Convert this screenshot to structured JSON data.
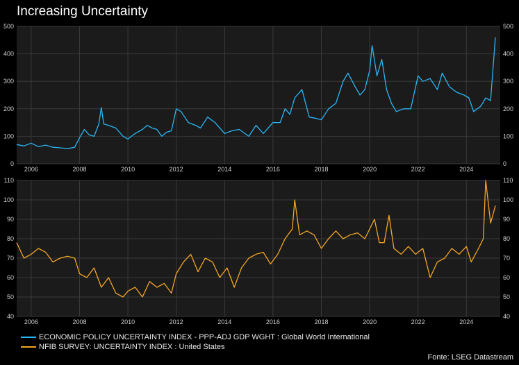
{
  "title": "Increasing Uncertainty",
  "source": "Fonte: LSEG Datastream",
  "legend": [
    {
      "label": "ECONOMIC POLICY UNCERTAINTY INDEX - PPP-ADJ GDP WGHT : Global World International",
      "color": "#29b6f6"
    },
    {
      "label": "NFIB SURVEY: UNCERTAINTY INDEX : United States",
      "color": "#f5a623"
    }
  ],
  "chart_data": [
    {
      "type": "line",
      "color": "#29b6f6",
      "x_ticks": [
        "2006",
        "2008",
        "2010",
        "2012",
        "2014",
        "2016",
        "2018",
        "2020",
        "2022",
        "2024"
      ],
      "y_ticks": [
        "0",
        "100",
        "200",
        "300",
        "400",
        "500"
      ],
      "ylim": [
        0,
        500
      ],
      "xlim": [
        2005.4,
        2025.4
      ],
      "grid": true,
      "series": [
        {
          "name": "ECONOMIC POLICY UNCERTAINTY INDEX - PPP-ADJ GDP WGHT : Global World International",
          "x": [
            2005.4,
            2005.7,
            2006.0,
            2006.3,
            2006.6,
            2006.9,
            2007.2,
            2007.5,
            2007.8,
            2008.0,
            2008.2,
            2008.4,
            2008.6,
            2008.8,
            2008.9,
            2009.0,
            2009.2,
            2009.5,
            2009.8,
            2010.0,
            2010.3,
            2010.6,
            2010.8,
            2011.0,
            2011.2,
            2011.4,
            2011.6,
            2011.8,
            2012.0,
            2012.2,
            2012.5,
            2012.8,
            2013.0,
            2013.3,
            2013.6,
            2014.0,
            2014.3,
            2014.6,
            2015.0,
            2015.3,
            2015.6,
            2016.0,
            2016.3,
            2016.5,
            2016.7,
            2016.9,
            2017.2,
            2017.5,
            2017.8,
            2018.0,
            2018.3,
            2018.6,
            2018.9,
            2019.1,
            2019.4,
            2019.6,
            2019.8,
            2020.0,
            2020.1,
            2020.3,
            2020.5,
            2020.7,
            2020.9,
            2021.1,
            2021.4,
            2021.7,
            2022.0,
            2022.2,
            2022.5,
            2022.8,
            2023.0,
            2023.3,
            2023.6,
            2023.9,
            2024.1,
            2024.3,
            2024.6,
            2024.8,
            2025.0,
            2025.2
          ],
          "y": [
            70,
            65,
            75,
            62,
            68,
            60,
            58,
            55,
            60,
            95,
            125,
            105,
            100,
            145,
            205,
            145,
            140,
            130,
            100,
            90,
            110,
            125,
            140,
            130,
            125,
            100,
            115,
            120,
            200,
            190,
            150,
            140,
            130,
            170,
            150,
            110,
            120,
            125,
            100,
            140,
            110,
            150,
            150,
            200,
            180,
            240,
            270,
            170,
            165,
            160,
            200,
            220,
            300,
            330,
            280,
            250,
            270,
            340,
            430,
            320,
            380,
            270,
            220,
            190,
            200,
            200,
            320,
            300,
            310,
            270,
            330,
            280,
            260,
            250,
            240,
            190,
            210,
            240,
            230,
            460
          ]
        }
      ]
    },
    {
      "type": "line",
      "color": "#f5a623",
      "x_ticks": [
        "2006",
        "2008",
        "2010",
        "2012",
        "2014",
        "2016",
        "2018",
        "2020",
        "2022",
        "2024"
      ],
      "y_ticks": [
        "40",
        "50",
        "60",
        "70",
        "80",
        "90",
        "100",
        "110"
      ],
      "ylim": [
        40,
        110
      ],
      "xlim": [
        2005.4,
        2025.4
      ],
      "grid": true,
      "series": [
        {
          "name": "NFIB SURVEY: UNCERTAINTY INDEX : United States",
          "x": [
            2005.4,
            2005.7,
            2006.0,
            2006.3,
            2006.6,
            2006.9,
            2007.2,
            2007.5,
            2007.8,
            2008.0,
            2008.3,
            2008.6,
            2008.9,
            2009.2,
            2009.5,
            2009.8,
            2010.0,
            2010.3,
            2010.6,
            2010.9,
            2011.2,
            2011.5,
            2011.8,
            2012.0,
            2012.3,
            2012.6,
            2012.9,
            2013.2,
            2013.5,
            2013.8,
            2014.1,
            2014.4,
            2014.7,
            2015.0,
            2015.3,
            2015.6,
            2015.9,
            2016.2,
            2016.5,
            2016.8,
            2016.9,
            2017.1,
            2017.4,
            2017.7,
            2018.0,
            2018.3,
            2018.6,
            2018.9,
            2019.2,
            2019.5,
            2019.8,
            2020.0,
            2020.2,
            2020.4,
            2020.6,
            2020.8,
            2021.0,
            2021.3,
            2021.6,
            2021.9,
            2022.2,
            2022.5,
            2022.8,
            2023.1,
            2023.4,
            2023.7,
            2024.0,
            2024.2,
            2024.5,
            2024.7,
            2024.8,
            2025.0,
            2025.2
          ],
          "y": [
            78,
            70,
            72,
            75,
            73,
            68,
            70,
            71,
            70,
            62,
            60,
            65,
            55,
            60,
            52,
            50,
            53,
            55,
            50,
            58,
            55,
            57,
            52,
            62,
            68,
            72,
            63,
            70,
            68,
            60,
            65,
            55,
            65,
            70,
            72,
            73,
            67,
            72,
            80,
            85,
            100,
            82,
            84,
            82,
            75,
            80,
            84,
            80,
            82,
            83,
            80,
            85,
            90,
            78,
            78,
            92,
            75,
            72,
            76,
            72,
            75,
            60,
            68,
            70,
            75,
            72,
            76,
            68,
            75,
            80,
            110,
            88,
            97
          ]
        }
      ]
    }
  ]
}
